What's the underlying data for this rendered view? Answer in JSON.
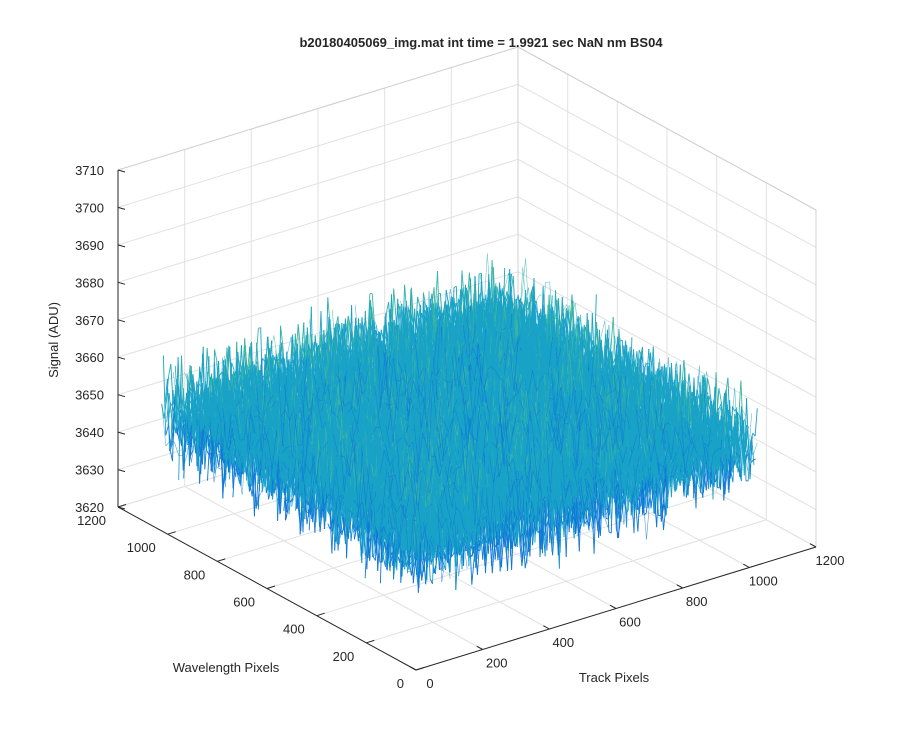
{
  "figure": {
    "title": "b20180405069_img.mat int time = 1.9921 sec  NaN nm BS04"
  },
  "chart_data": {
    "type": "surface",
    "title": "b20180405069_img.mat int time = 1.9921 sec  NaN nm BS04",
    "xlabel": "Track Pixels",
    "ylabel": "Wavelength Pixels",
    "zlabel": "Signal (ADU)",
    "xlim": [
      0,
      1200
    ],
    "ylim": [
      0,
      1200
    ],
    "zlim": [
      3620,
      3710
    ],
    "x_data_range": [
      0,
      1024
    ],
    "y_data_range": [
      0,
      1024
    ],
    "signal_mean": 3652,
    "signal_noise_range": [
      3625,
      3695
    ],
    "colormap": [
      "#0b4fd8",
      "#1078d8",
      "#1aa3c7",
      "#3cb7a0",
      "#8cc36a",
      "#d7b640"
    ],
    "grid": true,
    "xticks": [
      "0",
      "200",
      "400",
      "600",
      "800",
      "1000",
      "1200"
    ],
    "yticks": [
      "0",
      "200",
      "400",
      "600",
      "800",
      "1000",
      "1200"
    ],
    "zticks": [
      "3620",
      "3630",
      "3640",
      "3650",
      "3660",
      "3670",
      "3680",
      "3690",
      "3700",
      "3710"
    ]
  }
}
